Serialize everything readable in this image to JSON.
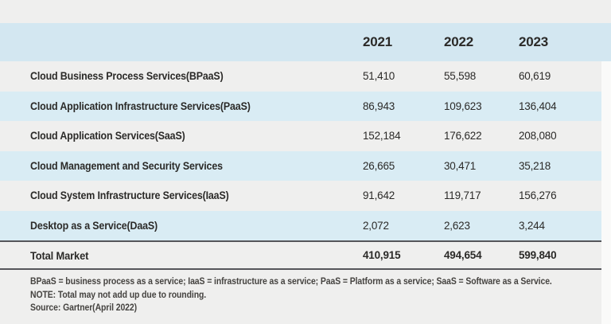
{
  "colors": {
    "page_bg": "#efefee",
    "header_blue": "#d3e7f1",
    "row_blue": "#d9ecf4",
    "rule_dark": "#55565a",
    "text_dark": "#2b2a28",
    "footnote_text": "#454340",
    "right_strip": "#fafaf9"
  },
  "table": {
    "columns": [
      "2021",
      "2022",
      "2023"
    ],
    "rows": [
      {
        "label": "Cloud Business Process Services(BPaaS)",
        "values": [
          "51,410",
          "55,598",
          "60,619"
        ]
      },
      {
        "label": "Cloud Application Infrastructure Services(PaaS)",
        "values": [
          "86,943",
          "109,623",
          "136,404"
        ]
      },
      {
        "label": "Cloud Application Services(SaaS)",
        "values": [
          "152,184",
          "176,622",
          "208,080"
        ]
      },
      {
        "label": "Cloud Management and Security Services",
        "values": [
          "26,665",
          "30,471",
          "35,218"
        ]
      },
      {
        "label": "Cloud System Infrastructure Services(IaaS)",
        "values": [
          "91,642",
          "119,717",
          "156,276"
        ]
      },
      {
        "label": "Desktop as a Service(DaaS)",
        "values": [
          "2,072",
          "2,623",
          "3,244"
        ]
      }
    ],
    "total": {
      "label": "Total Market",
      "values": [
        "410,915",
        "494,654",
        "599,840"
      ]
    }
  },
  "footnotes": {
    "abbreviations": "BPaaS = business process as a service; IaaS = infrastructure as a service; PaaS = Platform as a service; SaaS = Software as a Service.",
    "note": "NOTE: Total may not add up due to rounding.",
    "source": "Source: Gartner(April 2022)"
  },
  "chart_data": {
    "type": "table",
    "title": "",
    "categories": [
      "2021",
      "2022",
      "2023"
    ],
    "series": [
      {
        "name": "Cloud Business Process Services(BPaaS)",
        "values": [
          51410,
          55598,
          60619
        ]
      },
      {
        "name": "Cloud Application Infrastructure Services(PaaS)",
        "values": [
          86943,
          109623,
          136404
        ]
      },
      {
        "name": "Cloud Application Services(SaaS)",
        "values": [
          152184,
          176622,
          208080
        ]
      },
      {
        "name": "Cloud Management and Security Services",
        "values": [
          26665,
          30471,
          35218
        ]
      },
      {
        "name": "Cloud System Infrastructure Services(IaaS)",
        "values": [
          91642,
          119717,
          156276
        ]
      },
      {
        "name": "Desktop as a Service(DaaS)",
        "values": [
          2072,
          2623,
          3244
        ]
      },
      {
        "name": "Total Market",
        "values": [
          410915,
          494654,
          599840
        ]
      }
    ],
    "notes": [
      "BPaaS = business process as a service; IaaS = infrastructure as a service; PaaS = Platform as a service; SaaS = Software as a Service.",
      "NOTE: Total may not add up due to rounding.",
      "Source: Gartner(April 2022)"
    ]
  }
}
